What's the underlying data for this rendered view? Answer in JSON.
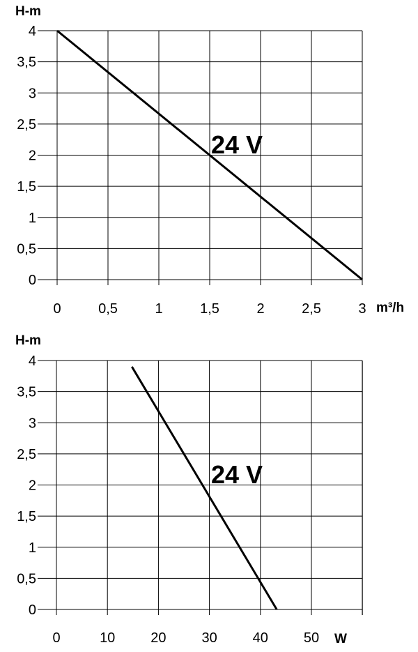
{
  "chart_data": [
    {
      "type": "line",
      "ylabel": "H-m",
      "xlabel": "m³/h",
      "xlim": [
        0,
        3
      ],
      "ylim": [
        0,
        4
      ],
      "x_ticks": [
        "0",
        "0,5",
        "1",
        "1,5",
        "2",
        "2,5",
        "3"
      ],
      "y_ticks": [
        "4",
        "3,5",
        "3",
        "2,5",
        "2",
        "1,5",
        "1",
        "0,5",
        "0"
      ],
      "grid": true,
      "series": [
        {
          "name": "24 V",
          "x": [
            0,
            3
          ],
          "y": [
            4,
            0
          ]
        }
      ]
    },
    {
      "type": "line",
      "ylabel": "H-m",
      "xlabel": "W",
      "xlim": [
        0,
        60
      ],
      "ylim": [
        0,
        4
      ],
      "x_ticks": [
        "0",
        "10",
        "20",
        "30",
        "40",
        "50"
      ],
      "y_ticks": [
        "4",
        "3,5",
        "3",
        "2,5",
        "2",
        "1,5",
        "1",
        "0,5",
        "0"
      ],
      "grid": true,
      "series": [
        {
          "name": "24 V",
          "x": [
            14.8,
            43.2
          ],
          "y": [
            3.9,
            0
          ]
        }
      ]
    }
  ]
}
